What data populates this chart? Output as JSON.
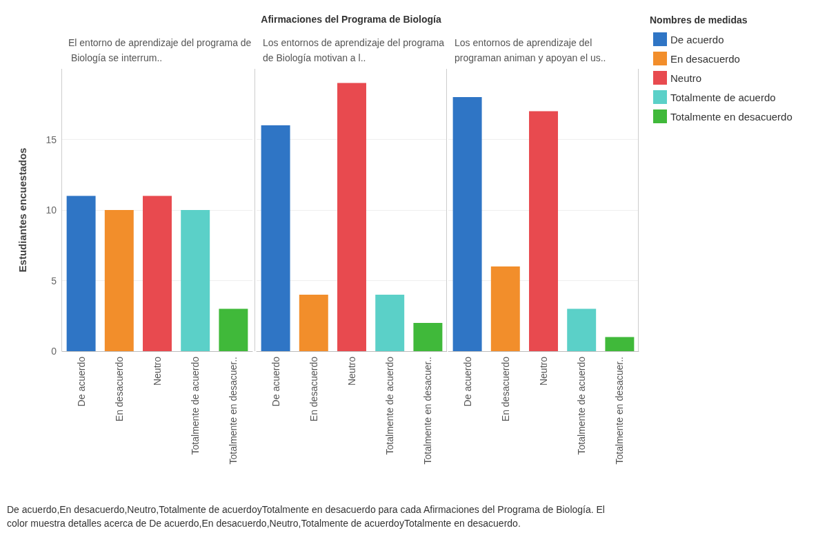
{
  "chart_data": [
    {
      "type": "bar",
      "subtitle": "El entorno de aprendizaje del programa de Biología se interrum..",
      "ylabel": "Estudiantes encuestados",
      "categories": [
        "De acuerdo",
        "En desacuerdo",
        "Neutro",
        "Totalmente de acuerdo",
        "Totalmente en desacuer.."
      ],
      "stacked": true,
      "series": [
        {
          "color": "#2f75c5",
          "values": [
            11,
            null,
            null,
            null,
            null
          ]
        },
        {
          "color": "#f28e2b",
          "values": [
            null,
            10,
            null,
            null,
            null
          ]
        },
        {
          "color": "#e84a4f",
          "values": [
            null,
            null,
            11,
            null,
            null
          ]
        },
        {
          "color": "#5bd0c8",
          "values": [
            null,
            null,
            null,
            10,
            null
          ]
        },
        {
          "color": "#40b93a",
          "values": [
            null,
            null,
            null,
            null,
            3
          ]
        }
      ],
      "ylim": [
        0,
        20
      ],
      "yticks": [
        0,
        5,
        10,
        15
      ],
      "grid": "y",
      "annotations": [
        "De acuerdo,En desacuerdo,Neutro,Totalmente de acuerdoyTotalmente en desacuerdo para cada Afirmaciones del Programa de Biología. El color muestra detalles acerca de De acuerdo,En desacuerdo,Neutro,Totalmente de acuerdoyTotalmente en desacuerdo."
      ]
    },
    {
      "type": "bar",
      "title": "Afirmaciones del Programa de Biología",
      "subtitle": "Los entornos de aprendizaje del programa de Biología motivan a l..",
      "categories": [
        "De acuerdo",
        "En desacuerdo",
        "Neutro",
        "Totalmente de acuerdo",
        "Totalmente en desacuer.."
      ],
      "stacked": true,
      "series": [
        {
          "color": "#2f75c5",
          "values": [
            16,
            null,
            null,
            null,
            null
          ]
        },
        {
          "color": "#f28e2b",
          "values": [
            null,
            4,
            null,
            null,
            null
          ]
        },
        {
          "color": "#e84a4f",
          "values": [
            null,
            null,
            19,
            null,
            null
          ]
        },
        {
          "color": "#5bd0c8",
          "values": [
            null,
            null,
            null,
            4,
            null
          ]
        },
        {
          "color": "#40b93a",
          "values": [
            null,
            null,
            null,
            null,
            2
          ]
        }
      ],
      "ylim": [
        0,
        20
      ],
      "yticks": [
        0,
        5,
        10,
        15
      ],
      "grid": "y",
      "tick_labels": "x"
    },
    {
      "type": "bar",
      "subtitle": "Los entornos de aprendizaje del programan animan y apoyan el us..",
      "categories": [
        "De acuerdo",
        "En desacuerdo",
        "Neutro",
        "Totalmente de acuerdo",
        "Totalmente en desacuer.."
      ],
      "stacked": true,
      "series": [
        {
          "name": "De acuerdo",
          "color": "#2f75c5",
          "values": [
            18,
            null,
            null,
            null,
            null
          ]
        },
        {
          "name": "En desacuerdo",
          "color": "#f28e2b",
          "values": [
            null,
            6,
            null,
            null,
            null
          ]
        },
        {
          "name": "Neutro",
          "color": "#e84a4f",
          "values": [
            null,
            null,
            17,
            null,
            null
          ]
        },
        {
          "name": "Totalmente de acuerdo",
          "color": "#5bd0c8",
          "values": [
            null,
            null,
            null,
            3,
            null
          ]
        },
        {
          "name": "Totalmente en desacuerdo",
          "color": "#40b93a",
          "values": [
            null,
            null,
            null,
            null,
            1
          ]
        }
      ],
      "ylim": [
        0,
        20
      ],
      "yticks": [
        0,
        5,
        10,
        15
      ],
      "grid": "y",
      "tick_labels": "x",
      "legend": "right",
      "legend_title": "Nombres de medidas"
    }
  ]
}
